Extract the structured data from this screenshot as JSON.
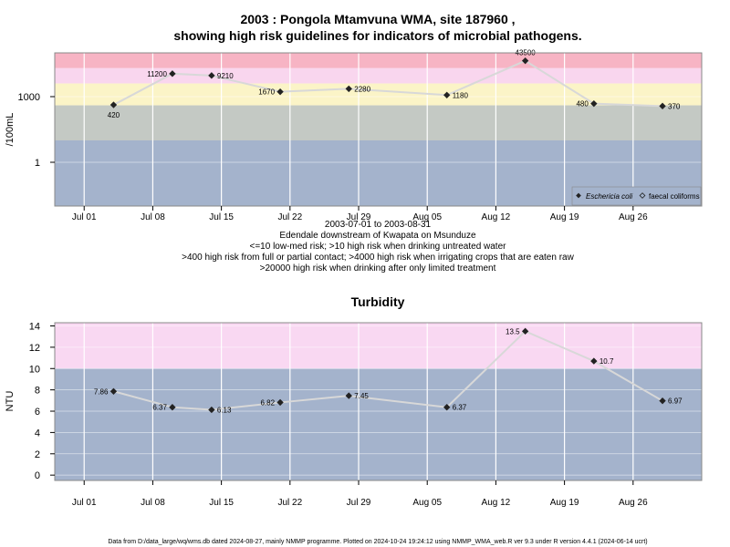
{
  "colors": {
    "band_very_high": "#f7b4c4",
    "band_high": "#f9d6ee",
    "band_med": "#fbf4c7",
    "band_low": "#c4c9c4",
    "band_base": "#a4b3cc",
    "turb_high": "#f9d8f2",
    "turb_base": "#a4b3cc",
    "line": "#d8d8d8",
    "marker": "#222222",
    "grid": "#ffffff"
  },
  "chart_data": [
    {
      "type": "line",
      "title_line1": "2003 : Pongola Mtamvuna WMA, site 187960 ,",
      "title_line2": "showing high risk guidelines for indicators of microbial pathogens.",
      "ylabel": "/100mL",
      "y_scale": "log",
      "y_ticks": [
        "1",
        "1000"
      ],
      "x_ticks": [
        "Jul 01",
        "Jul 08",
        "Jul 15",
        "Jul 22",
        "Jul 29",
        "Aug 05",
        "Aug 12",
        "Aug 19",
        "Aug 26"
      ],
      "grid": true,
      "legend_position": "bottom-right",
      "legend": [
        "Eschericia coli",
        "faecal coliforms"
      ],
      "series": [
        {
          "name": "Eschericia coli",
          "x": [
            "2003-07-04",
            "2003-07-10",
            "2003-07-14",
            "2003-07-21",
            "2003-07-28",
            "2003-08-07",
            "2003-08-15",
            "2003-08-22",
            "2003-08-29"
          ],
          "values": [
            420,
            11200,
            9210,
            1670,
            2280,
            1180,
            43500,
            480,
            370
          ],
          "labels": [
            "420",
            "11200",
            "9210",
            "1670",
            "2280",
            "1180",
            "43500",
            "480",
            "370"
          ]
        }
      ],
      "risk_bands": [
        {
          "from": 20000,
          "to": 100000
        },
        {
          "from": 4000,
          "to": 20000
        },
        {
          "from": 400,
          "to": 4000
        },
        {
          "from": 10,
          "to": 400
        },
        {
          "from": 0.01,
          "to": 10
        }
      ],
      "caption": [
        "2003-07-01 to 2003-08-31",
        "Edendale downstream of Kwapata on Msunduze",
        "<=10 low-med risk; >10 high risk when drinking untreated water",
        ">400 high risk from full or partial contact; >4000 high risk when irrigating crops that are eaten raw",
        ">20000 high risk when drinking after only limited treatment"
      ]
    },
    {
      "type": "line",
      "title": "Turbidity",
      "ylabel": "NTU",
      "ylim": [
        -0.5,
        14.3
      ],
      "y_ticks": [
        "0",
        "2",
        "4",
        "6",
        "8",
        "10",
        "12",
        "14"
      ],
      "x_ticks": [
        "Jul 01",
        "Jul 08",
        "Jul 15",
        "Jul 22",
        "Jul 29",
        "Aug 05",
        "Aug 12",
        "Aug 19",
        "Aug 26"
      ],
      "grid": true,
      "risk_bands": [
        {
          "from": 10,
          "to": 14.3
        },
        {
          "from": -0.5,
          "to": 10
        }
      ],
      "series": [
        {
          "name": "Turbidity",
          "x": [
            "2003-07-04",
            "2003-07-10",
            "2003-07-14",
            "2003-07-21",
            "2003-07-28",
            "2003-08-07",
            "2003-08-15",
            "2003-08-22",
            "2003-08-29"
          ],
          "values": [
            7.86,
            6.37,
            6.13,
            6.82,
            7.45,
            6.37,
            13.5,
            10.7,
            6.97
          ],
          "labels": [
            "7.86",
            "6.37",
            "6.13",
            "6.82",
            "7.45",
            "6.37",
            "13.5",
            "10.7",
            "6.97"
          ]
        }
      ]
    }
  ],
  "footer": "Data from D:/data_large/wq/wms.db dated 2024-08-27, mainly NMMP programme. Plotted on 2024-10-24 19:24:12 using NMMP_WMA_web.R ver 9.3 under R version 4.4.1 (2024-06-14 ucrt)"
}
